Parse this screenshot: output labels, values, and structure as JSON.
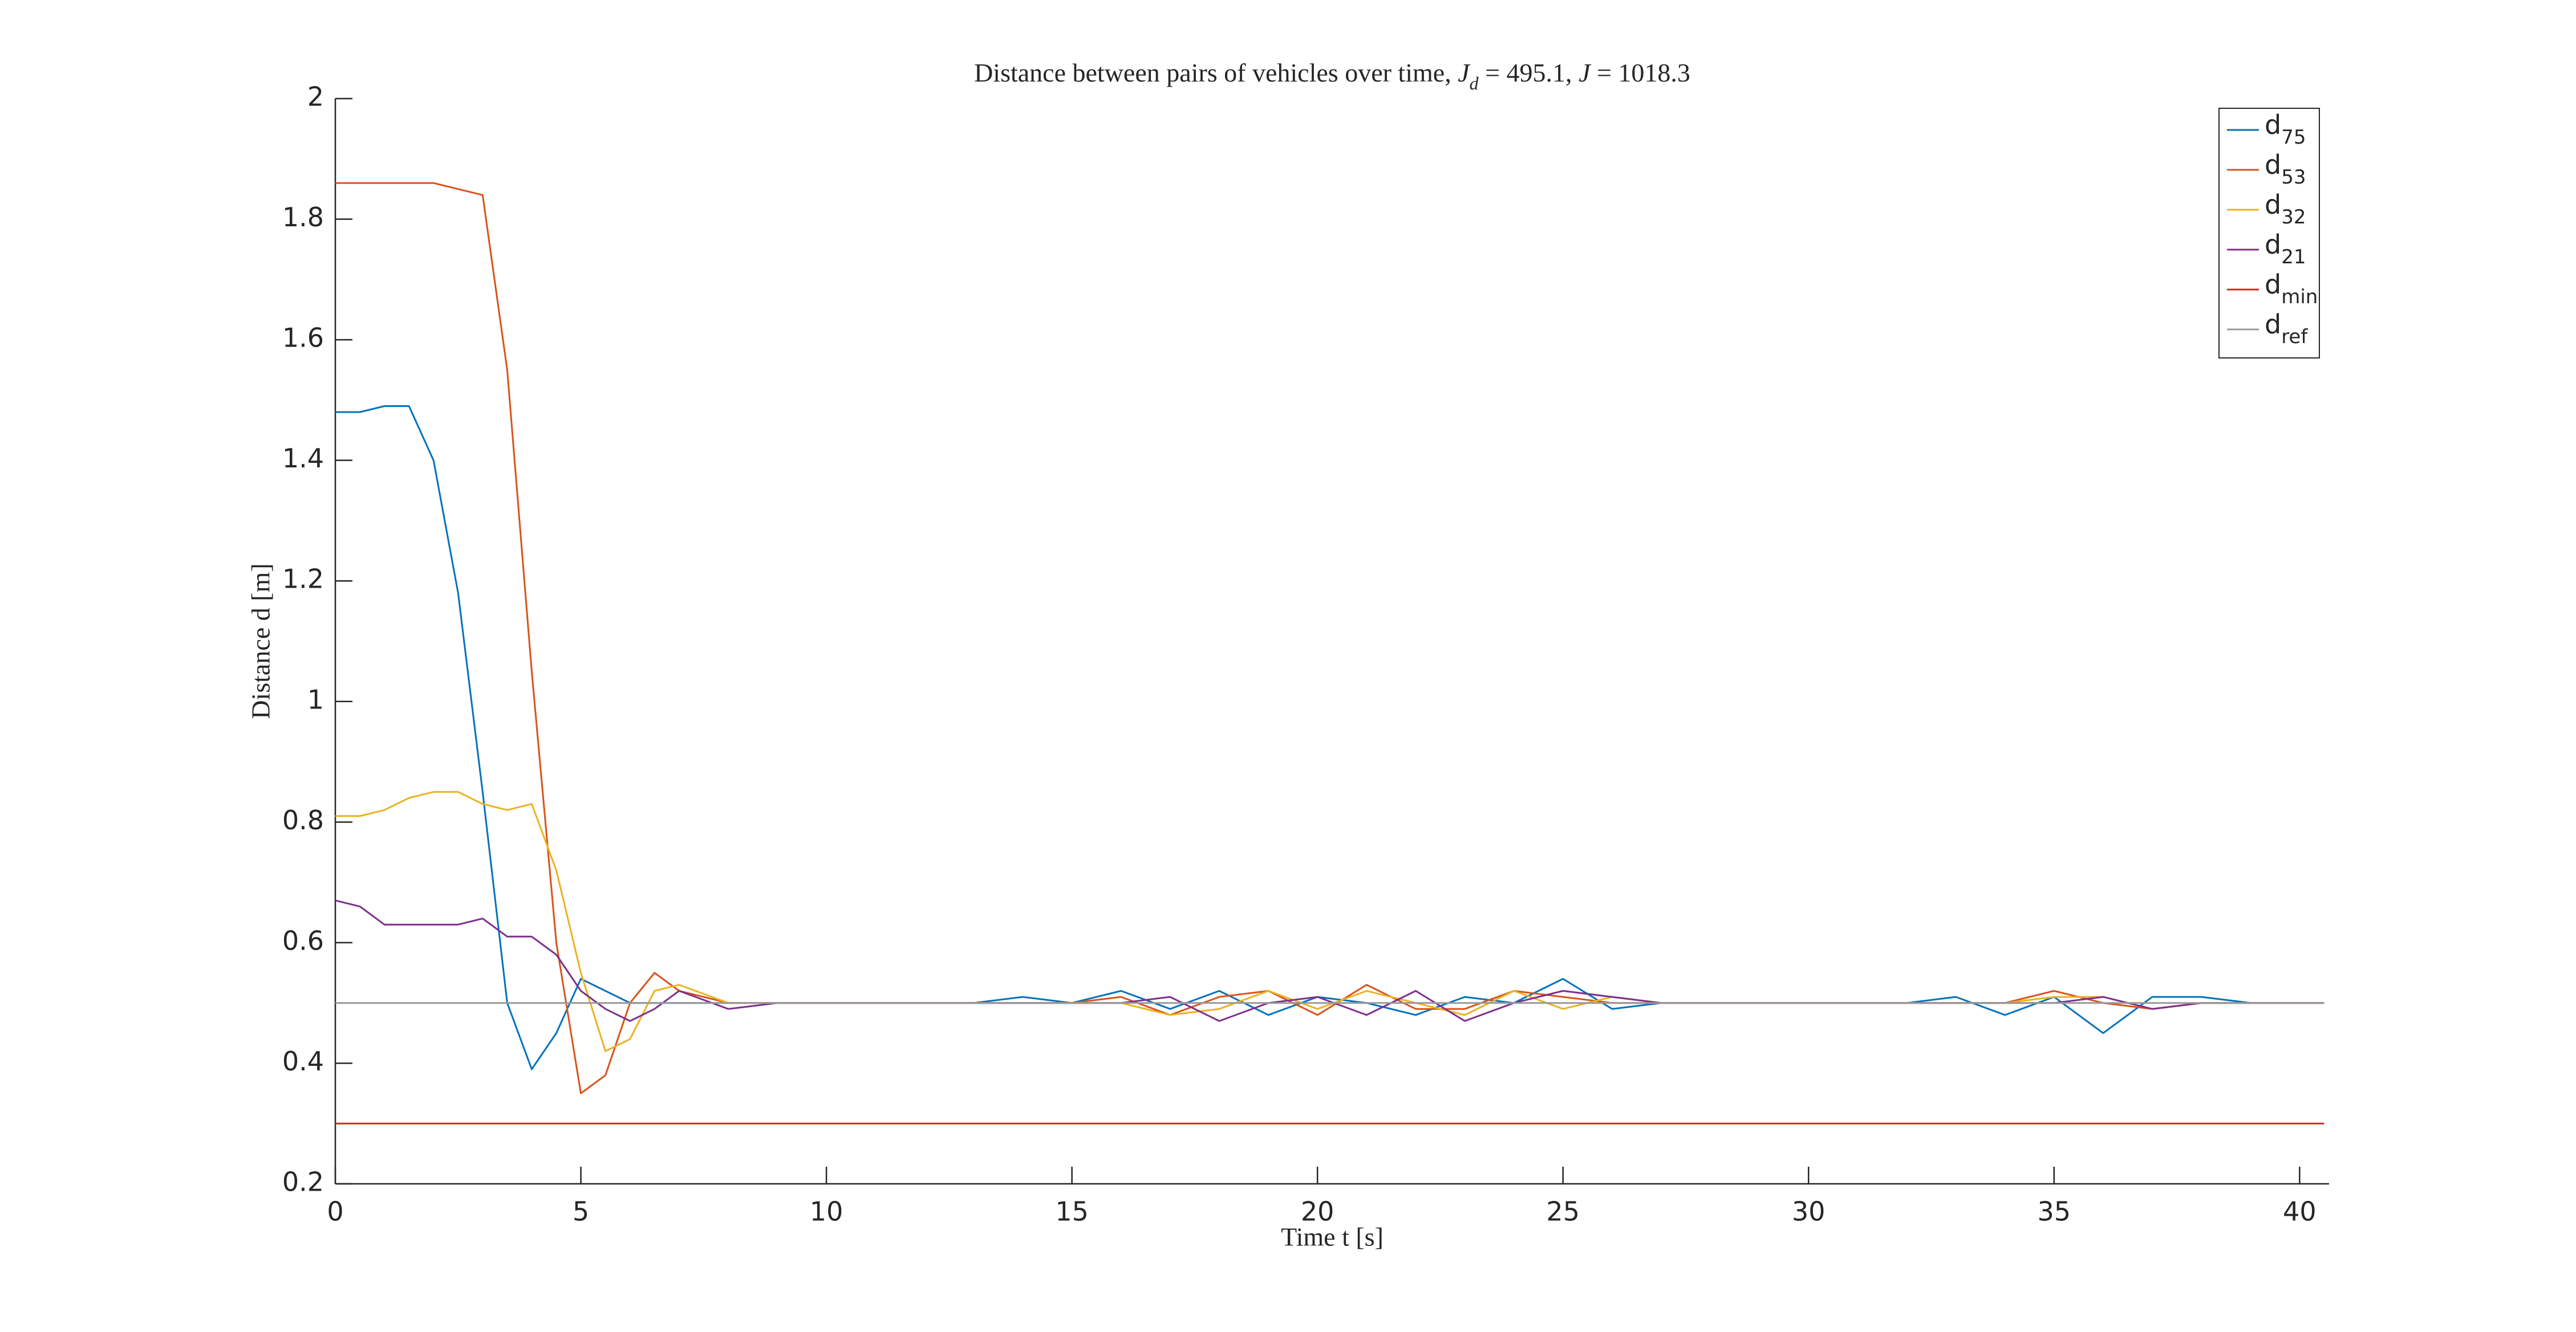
{
  "chart_data": {
    "type": "line",
    "title": [
      {
        "text": "Distance between pairs of vehicles over time, "
      },
      {
        "text": "J",
        "style": "italic"
      },
      {
        "text": "d",
        "style": "sub"
      },
      {
        "text": " = 495.1, "
      },
      {
        "text": "J",
        "style": "italic"
      },
      {
        "text": " = 1018.3"
      }
    ],
    "xlabel": "Time t [s]",
    "ylabel": "Distance d [m]",
    "xlim": [
      0,
      40.6
    ],
    "ylim": [
      0.2,
      2
    ],
    "xticks": [
      0,
      5,
      10,
      15,
      20,
      25,
      30,
      35,
      40
    ],
    "yticks": [
      0.2,
      0.4,
      0.6,
      0.8,
      1,
      1.2,
      1.4,
      1.6,
      1.8,
      2
    ],
    "legend": "upper right",
    "x": [
      0,
      0.5,
      1,
      1.5,
      2,
      2.5,
      3,
      3.5,
      4,
      4.5,
      5,
      5.5,
      6,
      6.5,
      7,
      8,
      9,
      10,
      11,
      12,
      13,
      14,
      15,
      16,
      17,
      18,
      19,
      20,
      21,
      22,
      23,
      24,
      25,
      26,
      27,
      28,
      29,
      30,
      31,
      32,
      33,
      34,
      35,
      36,
      37,
      38,
      39,
      40,
      40.5
    ],
    "series": [
      {
        "name": "d",
        "subscript": "75",
        "color": "#0072bd",
        "values": [
          1.48,
          1.48,
          1.49,
          1.49,
          1.4,
          1.18,
          0.85,
          0.5,
          0.39,
          0.45,
          0.54,
          0.52,
          0.5,
          0.5,
          0.5,
          0.5,
          0.5,
          0.5,
          0.5,
          0.5,
          0.5,
          0.51,
          0.5,
          0.52,
          0.49,
          0.52,
          0.48,
          0.51,
          0.5,
          0.48,
          0.51,
          0.5,
          0.54,
          0.49,
          0.5,
          0.5,
          0.5,
          0.5,
          0.5,
          0.5,
          0.51,
          0.48,
          0.51,
          0.45,
          0.51,
          0.51,
          0.5,
          0.5,
          0.5
        ]
      },
      {
        "name": "d",
        "subscript": "53",
        "color": "#d95319",
        "values": [
          1.86,
          1.86,
          1.86,
          1.86,
          1.86,
          1.85,
          1.84,
          1.55,
          1.05,
          0.6,
          0.35,
          0.38,
          0.5,
          0.55,
          0.52,
          0.5,
          0.5,
          0.5,
          0.5,
          0.5,
          0.5,
          0.5,
          0.5,
          0.51,
          0.48,
          0.51,
          0.52,
          0.48,
          0.53,
          0.49,
          0.49,
          0.52,
          0.51,
          0.5,
          0.5,
          0.5,
          0.5,
          0.5,
          0.5,
          0.5,
          0.5,
          0.5,
          0.52,
          0.5,
          0.49,
          0.5,
          0.5,
          0.5,
          0.5
        ]
      },
      {
        "name": "d",
        "subscript": "32",
        "color": "#edb120",
        "values": [
          0.81,
          0.81,
          0.82,
          0.84,
          0.85,
          0.85,
          0.83,
          0.82,
          0.83,
          0.72,
          0.55,
          0.42,
          0.44,
          0.52,
          0.53,
          0.5,
          0.5,
          0.5,
          0.5,
          0.5,
          0.5,
          0.5,
          0.5,
          0.5,
          0.48,
          0.49,
          0.52,
          0.49,
          0.52,
          0.5,
          0.48,
          0.52,
          0.49,
          0.51,
          0.5,
          0.5,
          0.5,
          0.5,
          0.5,
          0.5,
          0.5,
          0.5,
          0.51,
          0.51,
          0.49,
          0.5,
          0.5,
          0.5,
          0.5
        ]
      },
      {
        "name": "d",
        "subscript": "21",
        "color": "#7e2f8e",
        "values": [
          0.67,
          0.66,
          0.63,
          0.63,
          0.63,
          0.63,
          0.64,
          0.61,
          0.61,
          0.58,
          0.52,
          0.49,
          0.47,
          0.49,
          0.52,
          0.49,
          0.5,
          0.5,
          0.5,
          0.5,
          0.5,
          0.5,
          0.5,
          0.5,
          0.51,
          0.47,
          0.5,
          0.51,
          0.48,
          0.52,
          0.47,
          0.5,
          0.52,
          0.51,
          0.5,
          0.5,
          0.5,
          0.5,
          0.5,
          0.5,
          0.5,
          0.5,
          0.5,
          0.51,
          0.49,
          0.5,
          0.5,
          0.5,
          0.5
        ]
      },
      {
        "name": "d",
        "subscript": "min",
        "color": "#e02020",
        "x": [
          0,
          40.5
        ],
        "values": [
          0.3,
          0.3
        ]
      },
      {
        "name": "d",
        "subscript": "ref",
        "color": "#999999",
        "x": [
          0,
          40.5
        ],
        "values": [
          0.5,
          0.5
        ]
      }
    ]
  }
}
